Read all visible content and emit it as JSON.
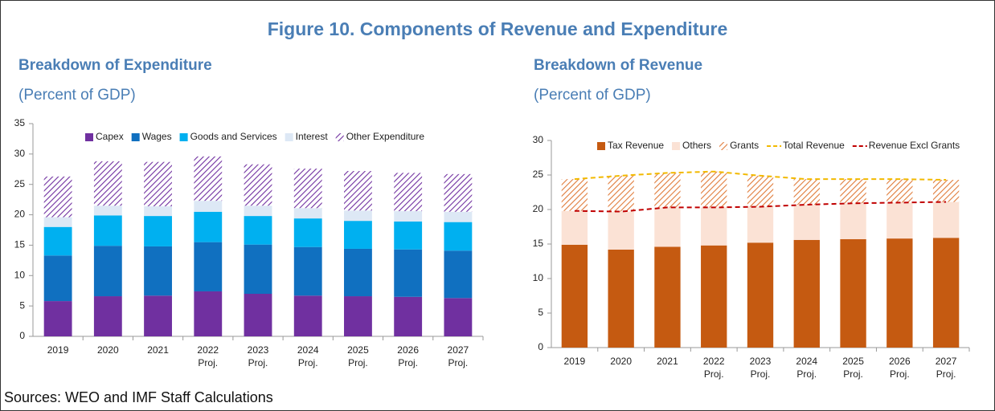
{
  "title": "Figure 10. Components of Revenue and Expenditure",
  "sources": "Sources: WEO and IMF Staff Calculations",
  "chart_data": [
    {
      "type": "bar",
      "title": "Breakdown of Expenditure",
      "subtitle": "(Percent of GDP)",
      "categories": [
        "2019",
        "2020",
        "2021",
        "2022 Proj.",
        "2023 Proj.",
        "2024 Proj.",
        "2025 Proj.",
        "2026 Proj.",
        "2027 Proj."
      ],
      "ylim": [
        0,
        35
      ],
      "yticks": [
        0,
        5,
        10,
        15,
        20,
        25,
        30,
        35
      ],
      "series": [
        {
          "name": "Capex",
          "color": "#7030a0",
          "values": [
            5.8,
            6.6,
            6.7,
            7.4,
            7.0,
            6.7,
            6.6,
            6.5,
            6.3
          ]
        },
        {
          "name": "Wages",
          "color": "#1070c0",
          "values": [
            7.5,
            8.3,
            8.1,
            8.1,
            8.1,
            8.0,
            7.8,
            7.8,
            7.8
          ]
        },
        {
          "name": "Goods and Services",
          "color": "#00b0f0",
          "values": [
            4.7,
            5.0,
            5.0,
            5.0,
            4.7,
            4.7,
            4.6,
            4.6,
            4.7
          ]
        },
        {
          "name": "Interest",
          "color": "#dde8f5",
          "values": [
            1.6,
            1.6,
            1.6,
            1.8,
            1.7,
            1.7,
            1.7,
            1.7,
            1.7
          ]
        },
        {
          "name": "Other Expenditure",
          "color": "#7030a0",
          "hatch": true,
          "values": [
            6.7,
            7.3,
            7.3,
            7.3,
            6.8,
            6.5,
            6.5,
            6.3,
            6.2
          ]
        }
      ]
    },
    {
      "type": "bar",
      "title": "Breakdown of Revenue",
      "subtitle": "(Percent of GDP)",
      "categories": [
        "2019",
        "2020",
        "2021",
        "2022 Proj.",
        "2023 Proj.",
        "2024 Proj.",
        "2025 Proj.",
        "2026 Proj.",
        "2027 Proj."
      ],
      "ylim": [
        0,
        30
      ],
      "yticks": [
        0,
        5,
        10,
        15,
        20,
        25,
        30
      ],
      "series": [
        {
          "name": "Tax Revenue",
          "color": "#c55a11",
          "values": [
            14.9,
            14.2,
            14.6,
            14.8,
            15.2,
            15.6,
            15.7,
            15.8,
            15.9
          ]
        },
        {
          "name": "Others",
          "color": "#fbe2d5",
          "values": [
            4.9,
            5.5,
            5.7,
            5.5,
            5.2,
            5.1,
            5.2,
            5.2,
            5.2
          ]
        },
        {
          "name": "Grants",
          "color": "#e07b39",
          "hatch": true,
          "values": [
            4.6,
            5.2,
            5.0,
            5.2,
            4.5,
            3.7,
            3.5,
            3.4,
            3.2
          ]
        },
        {
          "name": "Total Revenue",
          "color": "#f2b900",
          "type": "line",
          "values": [
            24.4,
            24.9,
            25.3,
            25.5,
            24.9,
            24.4,
            24.4,
            24.4,
            24.3
          ]
        },
        {
          "name": "Revenue Excl Grants",
          "color": "#c00000",
          "type": "line",
          "values": [
            19.8,
            19.7,
            20.3,
            20.3,
            20.4,
            20.7,
            20.9,
            21.0,
            21.1
          ]
        }
      ]
    }
  ]
}
